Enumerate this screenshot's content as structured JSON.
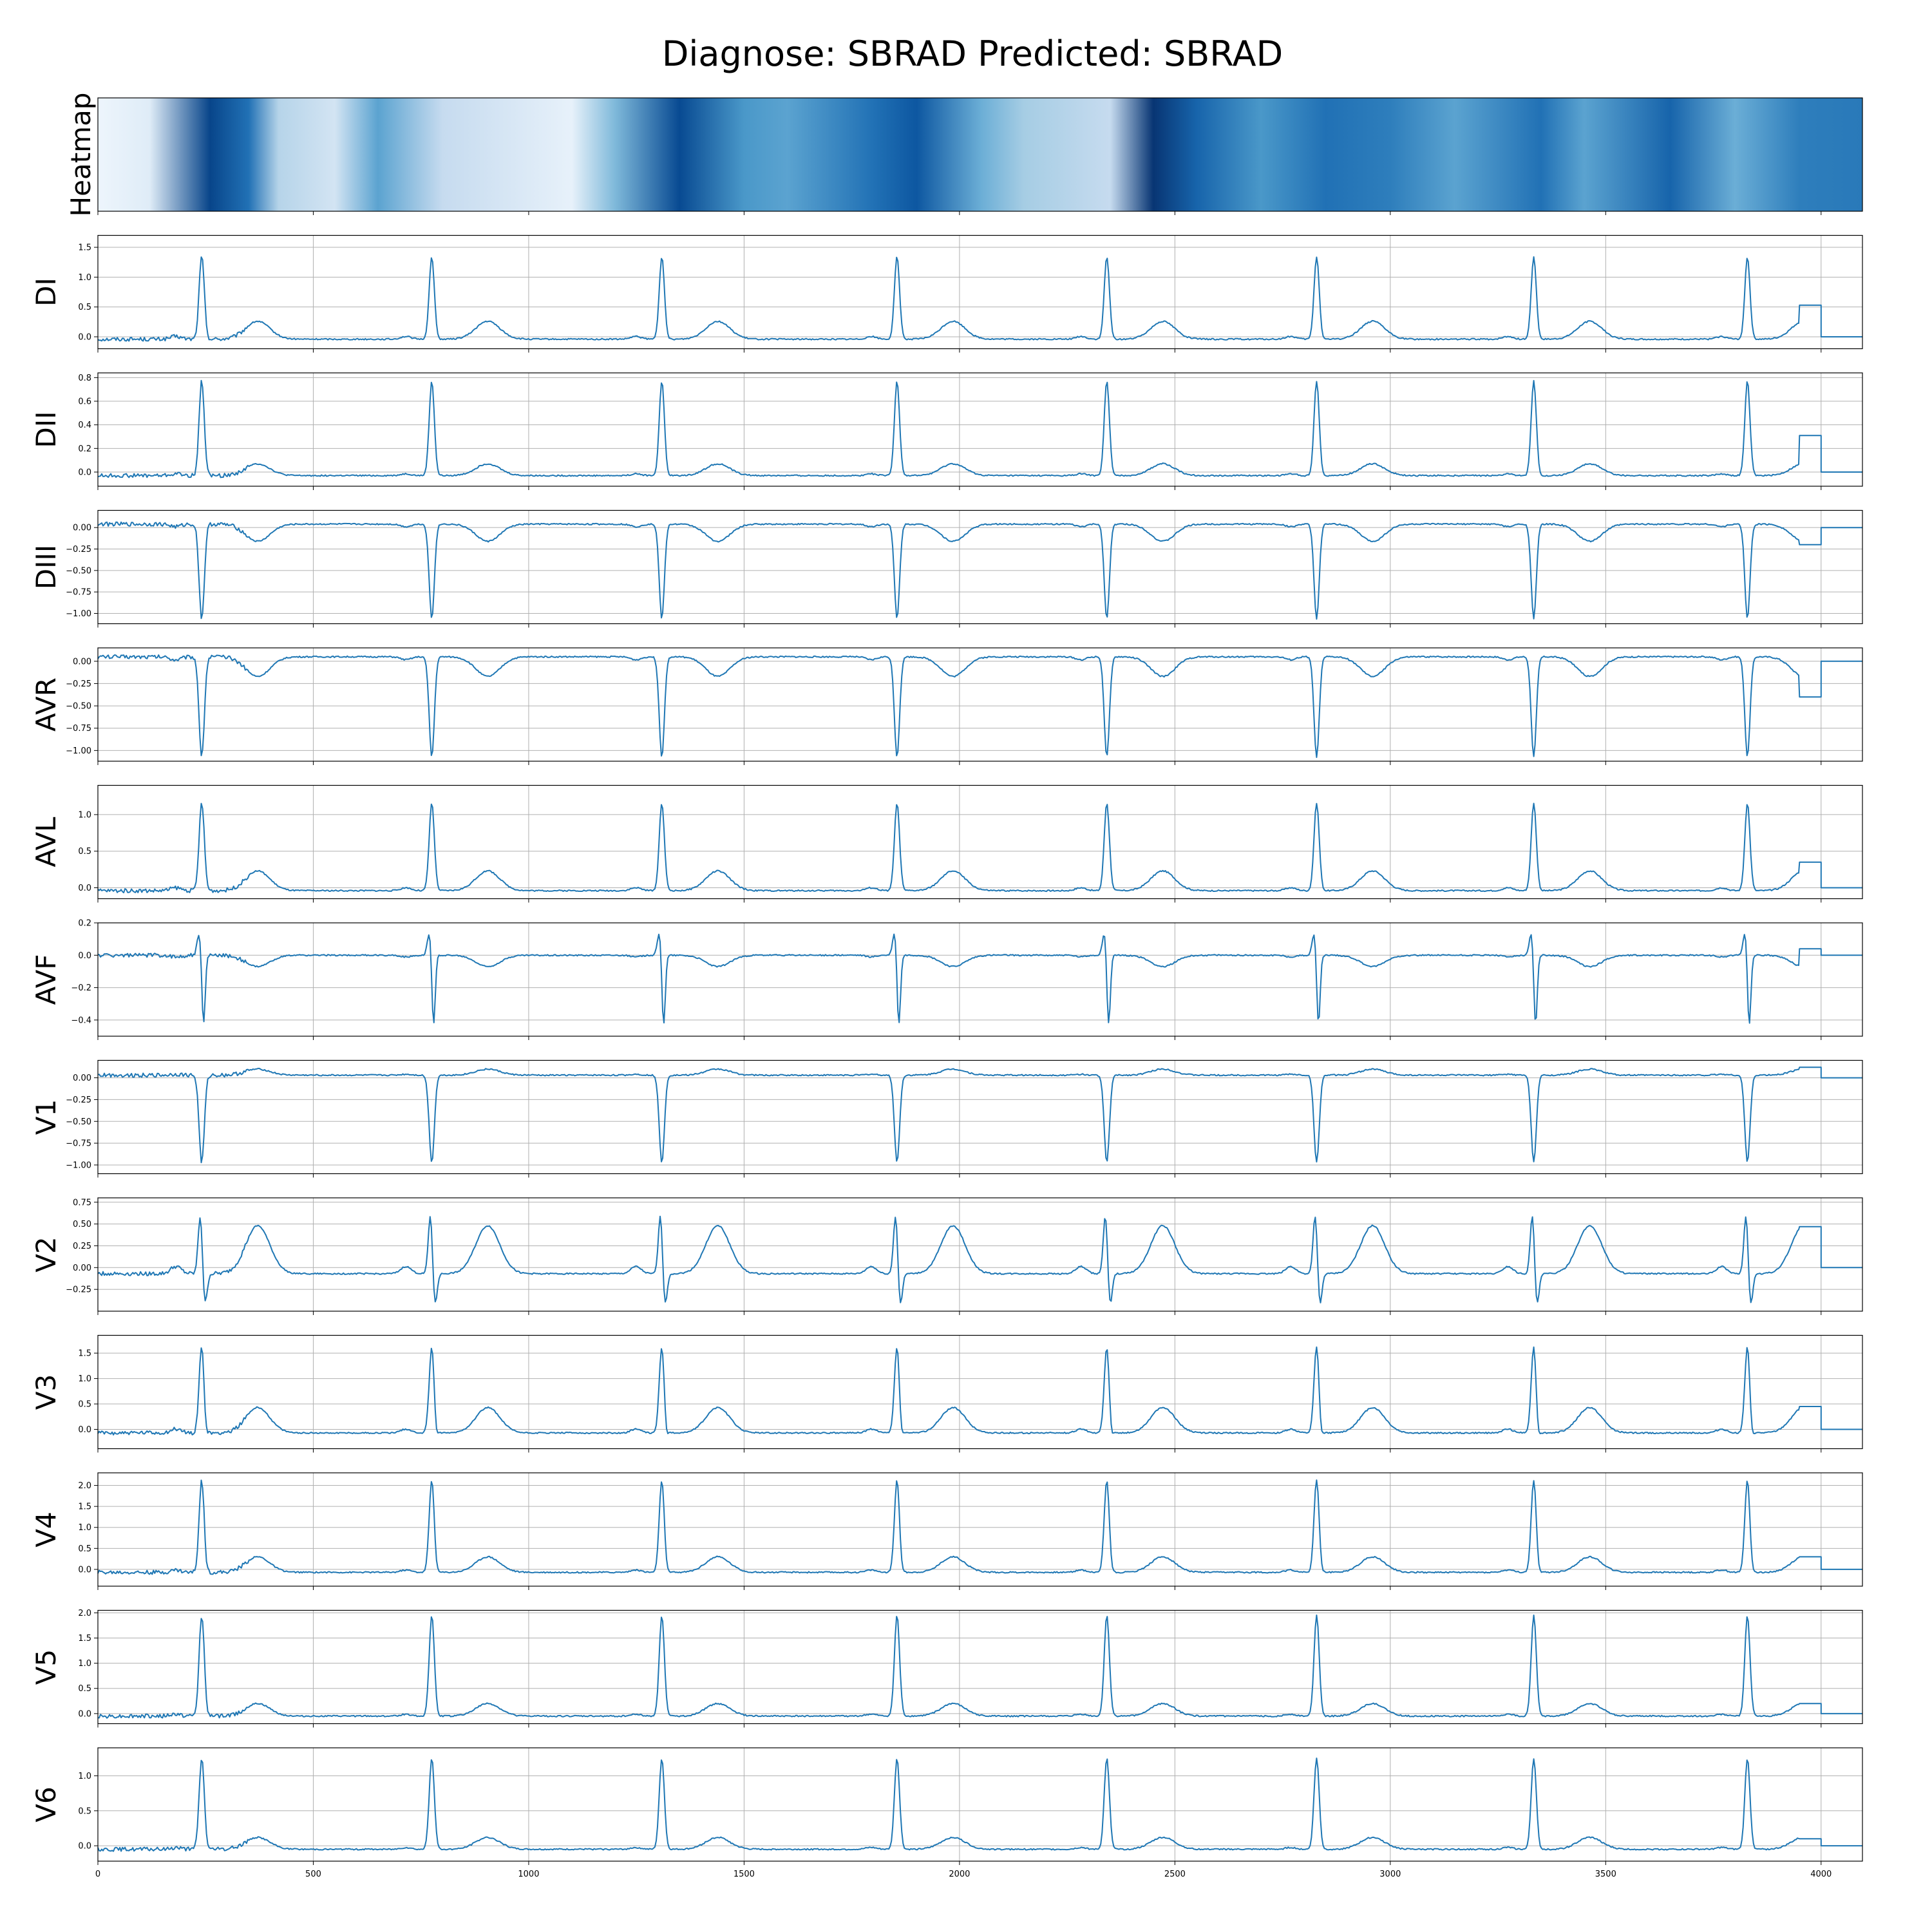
{
  "title": "Diagnose: SBRAD Predicted: SBRAD",
  "chart_data": {
    "type": "line",
    "title": "Diagnose: SBRAD Predicted: SBRAD",
    "xlim": [
      0,
      4096
    ],
    "x_ticks": [
      0,
      500,
      1000,
      1500,
      2000,
      2500,
      3000,
      3500,
      4000
    ],
    "grid": true,
    "line_color": "#1f77b4",
    "beat_positions": [
      241,
      775,
      1309,
      1855,
      2342,
      2829,
      3333,
      3829
    ],
    "signal_end": 3950,
    "heatmap": {
      "label": "Heatmap",
      "colormap": "Blues",
      "x": [
        0,
        120,
        260,
        350,
        420,
        550,
        650,
        800,
        1100,
        1200,
        1350,
        1500,
        1600,
        1800,
        1900,
        2050,
        2150,
        2350,
        2450,
        2550,
        2700,
        2850,
        3000,
        3150,
        3350,
        3450,
        3650,
        3800,
        3950,
        4096
      ],
      "intensity": [
        0.05,
        0.12,
        0.92,
        0.75,
        0.3,
        0.18,
        0.55,
        0.25,
        0.08,
        0.45,
        0.9,
        0.6,
        0.55,
        0.75,
        0.85,
        0.5,
        0.35,
        0.25,
        0.98,
        0.8,
        0.6,
        0.75,
        0.7,
        0.55,
        0.75,
        0.55,
        0.8,
        0.5,
        0.7,
        0.72
      ]
    },
    "series": [
      {
        "name": "DI",
        "ylim": [
          -0.2,
          1.7
        ],
        "ticks": [
          0.0,
          0.5,
          1.0,
          1.5
        ],
        "tick_labels": [
          "0.0",
          "0.5",
          "1.0",
          "1.5"
        ],
        "qrs": [
          {
            "c": 0,
            "w": 6,
            "a": 1.38
          }
        ],
        "t_amp": 0.3,
        "baseline": -0.04,
        "tail": 0.53
      },
      {
        "name": "DII",
        "ylim": [
          -0.12,
          0.84
        ],
        "ticks": [
          0.0,
          0.2,
          0.4,
          0.6,
          0.8
        ],
        "tick_labels": [
          "0.0",
          "0.2",
          "0.4",
          "0.6",
          "0.8"
        ],
        "qrs": [
          {
            "c": 0,
            "w": 6,
            "a": 0.8
          }
        ],
        "t_amp": 0.1,
        "baseline": -0.03,
        "tail": 0.31
      },
      {
        "name": "DIII",
        "ylim": [
          -1.12,
          0.2
        ],
        "ticks": [
          0.0,
          -0.25,
          -0.5,
          -0.75,
          -1.0
        ],
        "tick_labels": [
          "0.00",
          "−0.25",
          "−0.50",
          "−0.75",
          "−1.00"
        ],
        "qrs": [
          {
            "c": 0,
            "w": 6,
            "a": -1.1
          }
        ],
        "t_amp": -0.2,
        "baseline": 0.04,
        "tail": -0.2
      },
      {
        "name": "AVR",
        "ylim": [
          -1.12,
          0.15
        ],
        "ticks": [
          0.0,
          -0.25,
          -0.5,
          -0.75,
          -1.0
        ],
        "tick_labels": [
          "0.00",
          "−0.25",
          "−0.50",
          "−0.75",
          "−1.00"
        ],
        "qrs": [
          {
            "c": 0,
            "w": 6,
            "a": -1.12
          }
        ],
        "t_amp": -0.22,
        "baseline": 0.05,
        "tail": -0.4
      },
      {
        "name": "AVL",
        "ylim": [
          -0.15,
          1.4
        ],
        "ticks": [
          0.0,
          0.5,
          1.0
        ],
        "tick_labels": [
          "0.0",
          "0.5",
          "1.0"
        ],
        "qrs": [
          {
            "c": 0,
            "w": 6,
            "a": 1.2
          }
        ],
        "t_amp": 0.27,
        "baseline": -0.04,
        "tail": 0.35
      },
      {
        "name": "AVF",
        "ylim": [
          -0.5,
          0.2
        ],
        "ticks": [
          0.2,
          0.0,
          -0.2,
          -0.4
        ],
        "tick_labels": [
          "0.2",
          "0.0",
          "−0.2",
          "−0.4"
        ],
        "qrs": [
          {
            "c": -5,
            "w": 5,
            "a": 0.15
          },
          {
            "c": 4,
            "w": 4,
            "a": -0.45
          }
        ],
        "t_amp": -0.07,
        "baseline": 0.0,
        "tail": 0.04
      },
      {
        "name": "V1",
        "ylim": [
          -1.1,
          0.2
        ],
        "ticks": [
          0.0,
          -0.25,
          -0.5,
          -0.75,
          -1.0
        ],
        "tick_labels": [
          "0.00",
          "−0.25",
          "−0.50",
          "−0.75",
          "−1.00"
        ],
        "qrs": [
          {
            "c": 0,
            "w": 6,
            "a": -1.0
          }
        ],
        "t_amp": 0.07,
        "baseline": 0.03,
        "tail": 0.12
      },
      {
        "name": "V2",
        "ylim": [
          -0.5,
          0.8
        ],
        "ticks": [
          0.75,
          0.5,
          0.25,
          0.0,
          -0.25
        ],
        "tick_labels": [
          "0.75",
          "0.50",
          "0.25",
          "0.00",
          "−0.25"
        ],
        "qrs": [
          {
            "c": -3,
            "w": 5,
            "a": 0.7
          },
          {
            "c": 7,
            "w": 5,
            "a": -0.4
          }
        ],
        "t_amp": 0.55,
        "baseline": -0.07,
        "tail": 0.47
      },
      {
        "name": "V3",
        "ylim": [
          -0.38,
          1.85
        ],
        "ticks": [
          0.0,
          0.5,
          1.0,
          1.5
        ],
        "tick_labels": [
          "0.0",
          "0.5",
          "1.0",
          "1.5"
        ],
        "qrs": [
          {
            "c": 0,
            "w": 6,
            "a": 1.7
          },
          {
            "c": 9,
            "w": 4,
            "a": -0.25
          }
        ],
        "t_amp": 0.5,
        "baseline": -0.07,
        "tail": 0.45
      },
      {
        "name": "V4",
        "ylim": [
          -0.4,
          2.3
        ],
        "ticks": [
          0.0,
          0.5,
          1.0,
          1.5,
          2.0
        ],
        "tick_labels": [
          "0.0",
          "0.5",
          "1.0",
          "1.5",
          "2.0"
        ],
        "qrs": [
          {
            "c": 0,
            "w": 6,
            "a": 2.2
          },
          {
            "c": 9,
            "w": 4,
            "a": -0.12
          }
        ],
        "t_amp": 0.37,
        "baseline": -0.07,
        "tail": 0.3
      },
      {
        "name": "V5",
        "ylim": [
          -0.2,
          2.05
        ],
        "ticks": [
          0.0,
          0.5,
          1.0,
          1.5,
          2.0
        ],
        "tick_labels": [
          "0.0",
          "0.5",
          "1.0",
          "1.5",
          "2.0"
        ],
        "qrs": [
          {
            "c": 0,
            "w": 6,
            "a": 2.0
          }
        ],
        "t_amp": 0.25,
        "baseline": -0.05,
        "tail": 0.2
      },
      {
        "name": "V6",
        "ylim": [
          -0.22,
          1.4
        ],
        "ticks": [
          0.0,
          0.5,
          1.0
        ],
        "tick_labels": [
          "0.0",
          "0.5",
          "1.0"
        ],
        "qrs": [
          {
            "c": 0,
            "w": 6,
            "a": 1.3
          }
        ],
        "t_amp": 0.17,
        "baseline": -0.05,
        "tail": 0.1
      }
    ]
  }
}
